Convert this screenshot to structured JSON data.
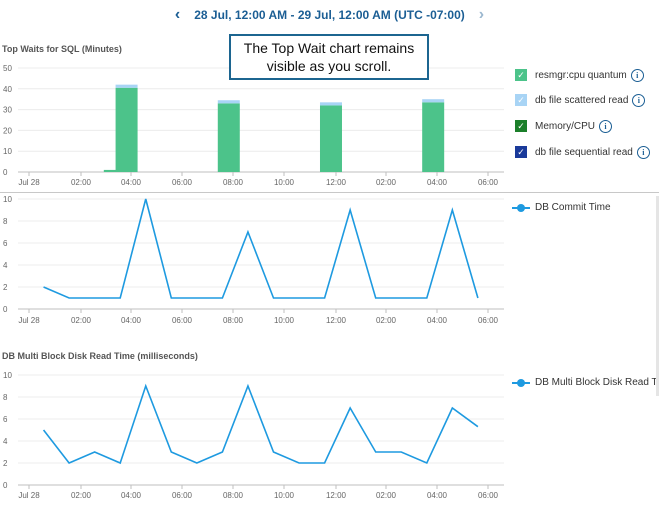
{
  "header": {
    "date_range": "28 Jul, 12:00 AM - 29 Jul, 12:00 AM (UTC -07:00)",
    "prev_icon": "chevron-left-icon",
    "next_icon": "chevron-right-icon"
  },
  "callout": {
    "line1": "The Top Wait chart remains",
    "line2": "visible as you scroll."
  },
  "top_waits": {
    "title": "Top Waits for SQL (Minutes)",
    "legend": [
      {
        "label": "resmgr:cpu quantum",
        "color": "#4cc38a",
        "checked_mark": "✓"
      },
      {
        "label": "db file scattered read",
        "color": "#a8d4f5",
        "checked_mark": "✓"
      },
      {
        "label": "Memory/CPU",
        "color": "#1b7f2a",
        "checked_mark": "✓"
      },
      {
        "label": "db file sequential read",
        "color": "#1a3a9a",
        "checked_mark": "✓"
      }
    ],
    "info_glyph": "i"
  },
  "commit_chart": {
    "legend_label": "DB Commit Time"
  },
  "multiblock_chart": {
    "title": "DB Multi Block Disk Read Time (milliseconds)",
    "legend_label": "DB Multi Block Disk Read Ti"
  },
  "chart_data": [
    {
      "type": "bar",
      "title": "Top Waits for SQL (Minutes)",
      "x_tick_labels": [
        "Jul 28",
        "02:00",
        "04:00",
        "06:00",
        "08:00",
        "10:00",
        "12:00",
        "02:00",
        "04:00",
        "06:00"
      ],
      "y_ticks": [
        0,
        10,
        20,
        30,
        40,
        50
      ],
      "ylim": [
        0,
        50
      ],
      "grid": true,
      "series": [
        {
          "name": "resmgr:cpu quantum",
          "color": "#4cc38a",
          "x": [
            3.75,
            4.25,
            8.25,
            12.25,
            16.25
          ],
          "values": [
            1,
            40.5,
            33,
            32,
            33.5
          ]
        },
        {
          "name": "db file scattered read",
          "color": "#a8d4f5",
          "x": [
            3.75,
            4.25,
            8.25,
            12.25,
            16.25
          ],
          "values": [
            0,
            1.5,
            1.5,
            1.5,
            1.5
          ]
        }
      ]
    },
    {
      "type": "line",
      "title": "",
      "series": [
        {
          "name": "DB Commit Time",
          "color": "#1e9ae0",
          "x": [
            0.5,
            1.5,
            2.5,
            3.5,
            4.5,
            5.5,
            6.5,
            7.5,
            8.5,
            9.5,
            10.5,
            11.5,
            12.5,
            13.5,
            14.5,
            15.5,
            16.5,
            17.5
          ],
          "values": [
            2,
            1,
            1,
            1,
            10,
            1,
            1,
            1,
            7,
            1,
            1,
            1,
            9,
            1,
            1,
            1,
            9,
            1
          ]
        }
      ],
      "x_tick_labels": [
        "Jul 28",
        "02:00",
        "04:00",
        "06:00",
        "08:00",
        "10:00",
        "12:00",
        "02:00",
        "04:00",
        "06:00"
      ],
      "y_ticks": [
        0,
        2,
        4,
        6,
        8,
        10
      ],
      "ylim": [
        0,
        10
      ],
      "grid": true
    },
    {
      "type": "line",
      "title": "DB Multi Block Disk Read Time (milliseconds)",
      "series": [
        {
          "name": "DB Multi Block Disk Read Ti",
          "color": "#1e9ae0",
          "x": [
            0.5,
            1.5,
            2.5,
            3.5,
            4.5,
            5.5,
            6.5,
            7.5,
            8.5,
            9.5,
            10.5,
            11.5,
            12.5,
            13.5,
            14.5,
            15.5,
            16.5,
            17.5
          ],
          "values": [
            5,
            2,
            3,
            2,
            9,
            3,
            2,
            3,
            9,
            3,
            2,
            2,
            7,
            3,
            3,
            2,
            7,
            5.3
          ]
        }
      ],
      "x_tick_labels": [
        "Jul 28",
        "02:00",
        "04:00",
        "06:00",
        "08:00",
        "10:00",
        "12:00",
        "02:00",
        "04:00",
        "06:00"
      ],
      "y_ticks": [
        0,
        2,
        4,
        6,
        8,
        10
      ],
      "ylim": [
        0,
        10
      ],
      "grid": true
    }
  ]
}
